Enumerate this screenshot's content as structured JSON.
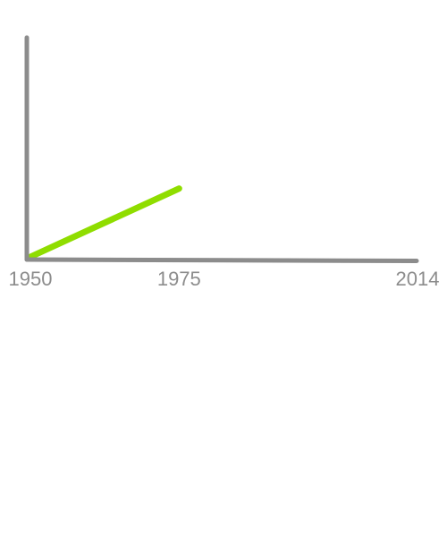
{
  "chart_data": {
    "type": "line",
    "x_axis": {
      "range": [
        1950,
        2014
      ],
      "tick_labels": [
        "1950",
        "1975",
        "2014"
      ]
    },
    "y_axis": {
      "range": [
        0,
        100
      ]
    },
    "grid": false,
    "legend": "none",
    "series": [
      {
        "color": "#8fdd00",
        "points": [
          {
            "x": 1950,
            "y": 0
          },
          {
            "x": 1975,
            "y": 32
          }
        ]
      }
    ],
    "colors": {
      "axis": "#8c8c8c",
      "tick_label": "#8c8c8c"
    }
  }
}
